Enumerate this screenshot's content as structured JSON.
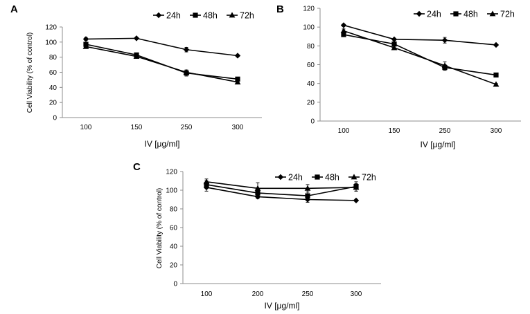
{
  "figure": {
    "type": "multi-panel line chart",
    "panels": [
      "A",
      "B",
      "C"
    ]
  },
  "chart_data": [
    {
      "panel": "A",
      "type": "line",
      "title": "",
      "xlabel": "IV [μg/ml]",
      "ylabel": "Cell Viability (% of control)",
      "categories": [
        "100",
        "150",
        "250",
        "300"
      ],
      "yticks": [
        "0",
        "20",
        "40",
        "60",
        "80",
        "100",
        "120"
      ],
      "ylim": [
        0,
        120
      ],
      "series": [
        {
          "name": "24h",
          "marker": "diamond",
          "values": [
            104,
            105,
            90,
            82
          ],
          "errors": [
            2,
            1,
            3,
            1
          ]
        },
        {
          "name": "48h",
          "marker": "square",
          "values": [
            97,
            83,
            59,
            51
          ],
          "errors": [
            2,
            2,
            4,
            2
          ]
        },
        {
          "name": "72h",
          "marker": "triangle",
          "values": [
            94,
            81,
            60,
            47
          ],
          "errors": [
            2,
            2,
            3,
            2
          ]
        }
      ]
    },
    {
      "panel": "B",
      "type": "line",
      "title": "",
      "xlabel": "IV  [μg/ml]",
      "ylabel": "",
      "categories": [
        "100",
        "150",
        "250",
        "300"
      ],
      "yticks": [
        "0",
        "20",
        "40",
        "60",
        "80",
        "100",
        "120"
      ],
      "ylim": [
        0,
        120
      ],
      "series": [
        {
          "name": "24h",
          "marker": "diamond",
          "values": [
            102,
            87,
            86,
            81
          ],
          "errors": [
            1,
            1,
            3,
            1
          ]
        },
        {
          "name": "48h",
          "marker": "square",
          "values": [
            92,
            82,
            57,
            49
          ],
          "errors": [
            2,
            2,
            3,
            1
          ]
        },
        {
          "name": "72h",
          "marker": "triangle",
          "values": [
            96,
            78,
            59,
            39
          ],
          "errors": [
            2,
            2,
            4,
            1
          ]
        }
      ]
    },
    {
      "panel": "C",
      "type": "line",
      "title": "",
      "xlabel": "IV [μg/ml]",
      "ylabel": "Cell Viability (% of control)",
      "categories": [
        "100",
        "200",
        "250",
        "300"
      ],
      "yticks": [
        "0",
        "20",
        "40",
        "60",
        "80",
        "100",
        "120"
      ],
      "ylim": [
        0,
        120
      ],
      "series": [
        {
          "name": "24h",
          "marker": "diamond",
          "values": [
            103,
            93,
            90,
            89
          ],
          "errors": [
            4,
            2,
            3,
            1
          ]
        },
        {
          "name": "48h",
          "marker": "square",
          "values": [
            106,
            97,
            94,
            104
          ],
          "errors": [
            4,
            3,
            4,
            5
          ]
        },
        {
          "name": "72h",
          "marker": "triangle",
          "values": [
            109,
            102,
            102,
            103
          ],
          "errors": [
            3,
            6,
            4,
            4
          ]
        }
      ]
    }
  ]
}
